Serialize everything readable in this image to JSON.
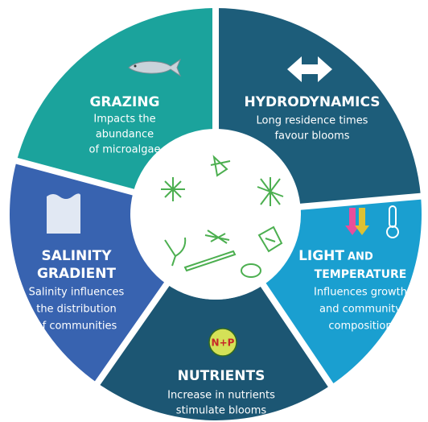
{
  "segments": [
    {
      "title": [
        "GRAZING"
      ],
      "text": [
        "Impacts the",
        "abundance",
        "of microalgae"
      ]
    },
    {
      "title": [
        "HYDRODYNAMICS"
      ],
      "text": [
        "Long residence times",
        "favour blooms"
      ]
    },
    {
      "title": [
        "LIGHT",
        "AND",
        "TEMPERATURE"
      ],
      "text": [
        "Influences growth",
        "and community",
        "composition"
      ]
    },
    {
      "title": [
        "NUTRIENTS"
      ],
      "badge": "N+P",
      "text": [
        "Increase in nutrients",
        "stimulate blooms"
      ]
    },
    {
      "title": [
        "SALINITY",
        "GRADIENT"
      ],
      "text": [
        "Salinity influences",
        "the distribution",
        "of communities"
      ]
    }
  ]
}
